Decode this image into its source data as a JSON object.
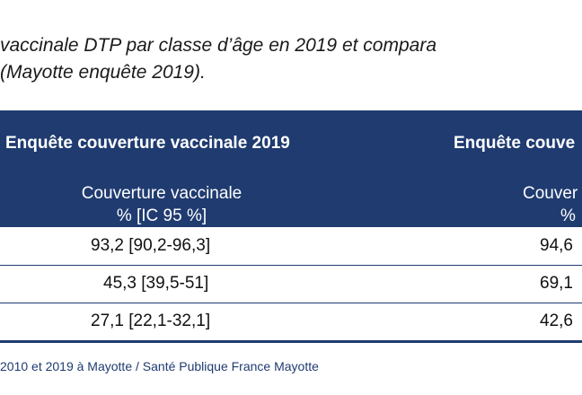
{
  "title": {
    "line1": "vaccinale DTP par classe d’âge en 2019 et compara",
    "line2": "(Mayotte enquête 2019)."
  },
  "table": {
    "col1_header": "Enquête couverture vaccinale 2019",
    "col2_header": "Enquête couve",
    "col1_subheader_line1": "Couverture vaccinale",
    "col1_subheader_line2": "% [IC 95 %]",
    "col2_subheader_line1": "Couver",
    "col2_subheader_line2": "%",
    "rows": [
      {
        "col1": "93,2 [90,2-96,3]",
        "col2": "94,6"
      },
      {
        "col1": "45,3 [39,5-51]",
        "col2": "69,1"
      },
      {
        "col1": "27,1 [22,1-32,1]",
        "col2": "42,6"
      }
    ]
  },
  "source": "2010 et 2019 à Mayotte / Santé Publique France Mayotte",
  "colors": {
    "header_bg": "#1f3b70",
    "header_text": "#ffffff"
  }
}
